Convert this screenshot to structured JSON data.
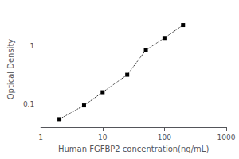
{
  "chart_data": {
    "type": "line",
    "xlabel": "Human FGFBP2 concentration(ng/mL)",
    "ylabel": "Optical Density",
    "x": [
      2,
      5,
      10,
      25,
      50,
      100,
      200
    ],
    "values": [
      0.055,
      0.095,
      0.16,
      0.32,
      0.85,
      1.38,
      2.3
    ],
    "xlim": [
      1,
      1000
    ],
    "ylim": [
      0.04,
      4
    ],
    "xticks": [
      1,
      10,
      100,
      1000
    ],
    "yticks": [
      0.1,
      1
    ],
    "log": true,
    "grid": false,
    "color": "#000000",
    "marker": "square",
    "line_style": "dotted"
  }
}
